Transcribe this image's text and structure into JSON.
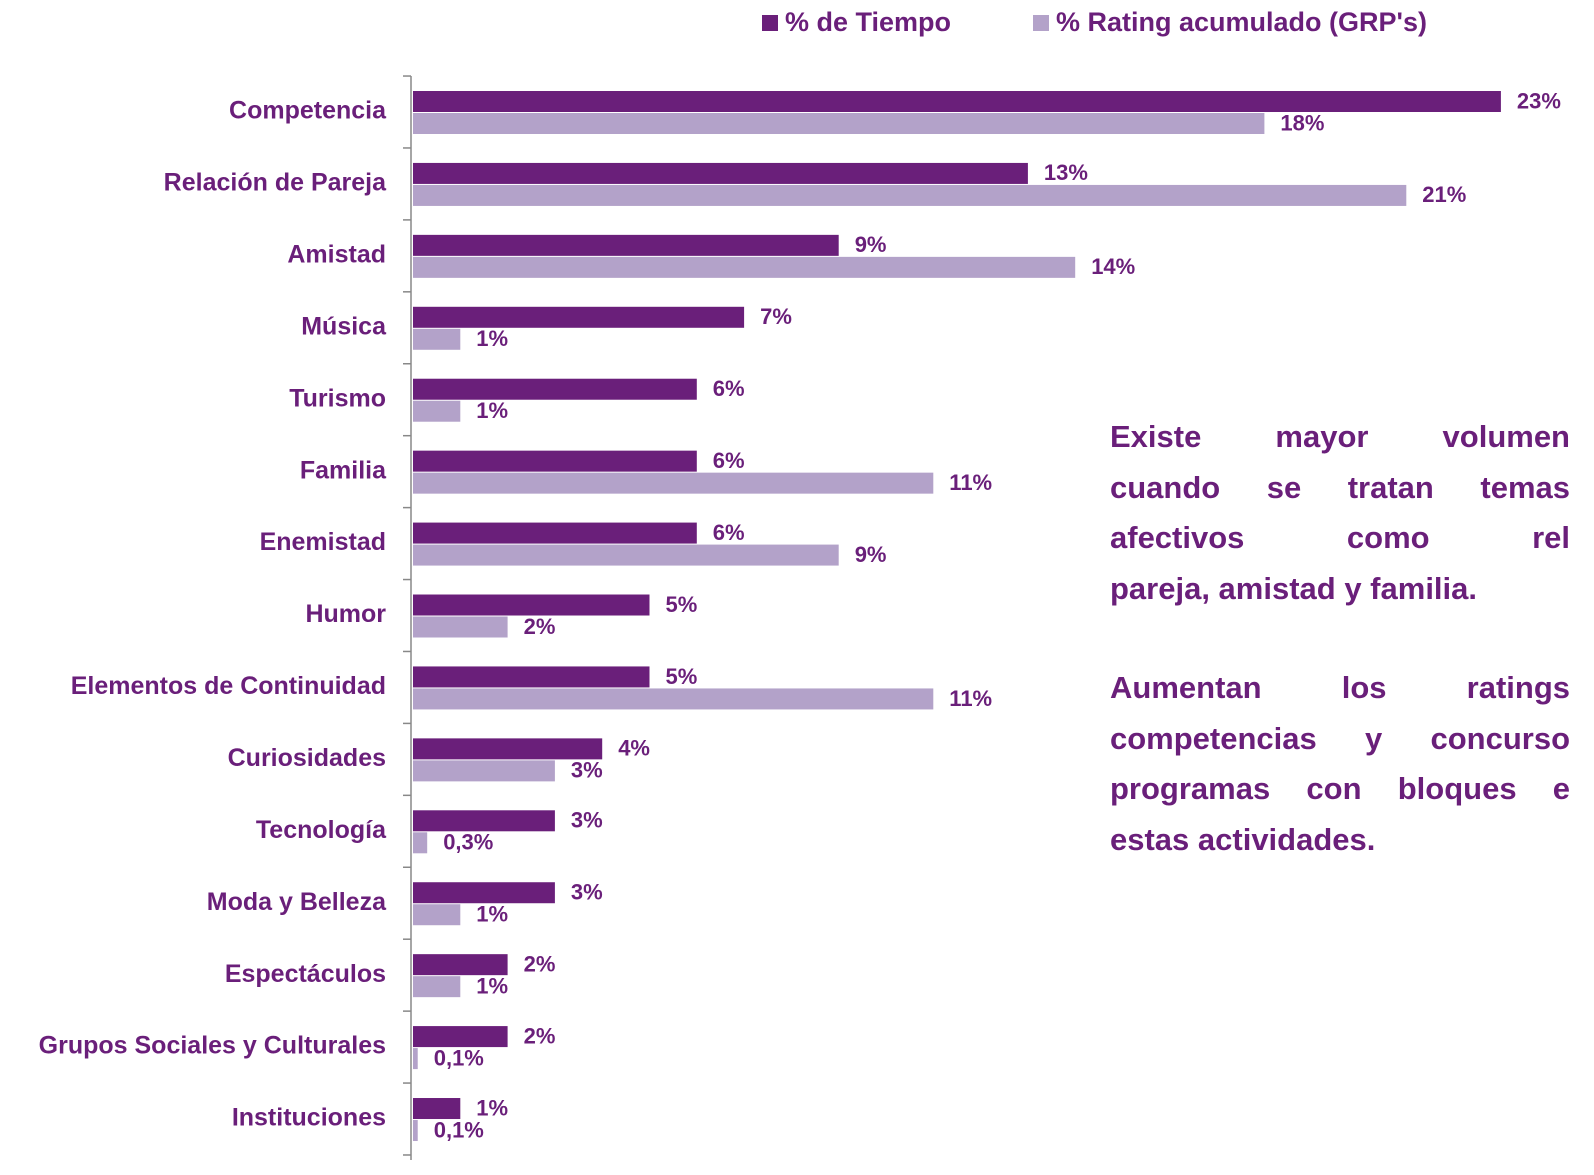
{
  "chart_data": {
    "type": "bar",
    "orientation": "horizontal",
    "categories": [
      "Competencia",
      "Relación de Pareja",
      "Amistad",
      "Música",
      "Turismo",
      "Familia",
      "Enemistad",
      "Humor",
      "Elementos de Continuidad",
      "Curiosidades",
      "Tecnología",
      "Moda y Belleza",
      "Espectáculos",
      "Grupos Sociales y Culturales",
      "Instituciones"
    ],
    "series": [
      {
        "name": "% de Tiempo",
        "color": "#6a1f7a",
        "values": [
          23,
          13,
          9,
          7,
          6,
          6,
          6,
          5,
          5,
          4,
          3,
          3,
          2,
          2,
          1
        ],
        "value_labels": [
          "23%",
          "13%",
          "9%",
          "7%",
          "6%",
          "6%",
          "6%",
          "5%",
          "5%",
          "4%",
          "3%",
          "3%",
          "2%",
          "2%",
          "1%"
        ]
      },
      {
        "name": "% Rating acumulado (GRP's)",
        "color": "#b3a2c9",
        "values": [
          18,
          21,
          14,
          1,
          1,
          11,
          9,
          2,
          11,
          3,
          0.3,
          1,
          1,
          0.1,
          0.1
        ],
        "value_labels": [
          "18%",
          "21%",
          "14%",
          "1%",
          "1%",
          "11%",
          "9%",
          "2%",
          "11%",
          "3%",
          "0,3%",
          "1%",
          "1%",
          "0,1%",
          "0,1%"
        ]
      }
    ],
    "legend": "top",
    "annotations": [
      [
        "Existe mayor volumen",
        "cuando se tratan temas",
        "afectivos como rel",
        "pareja, amistad y familia."
      ],
      [
        "Aumentan los ratings",
        "competencias y concurso",
        "programas con bloques e",
        "estas actividades."
      ]
    ]
  }
}
